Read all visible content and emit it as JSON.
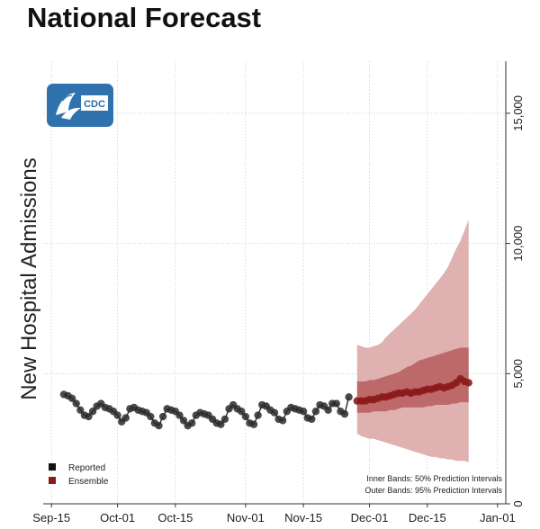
{
  "title": "National Forecast",
  "logo": {
    "text": "CDC",
    "color": "#2f72ad"
  },
  "chart_data": {
    "type": "line",
    "title": "National Forecast",
    "ylabel": "New Hospital Admissions",
    "xlabel": "",
    "x_tick_labels": [
      "Sep-15",
      "Oct-01",
      "Oct-15",
      "Nov-01",
      "Nov-15",
      "Dec-01",
      "Dec-15",
      "Jan-01"
    ],
    "y_ticks": [
      0,
      5000,
      10000,
      15000
    ],
    "y_tick_labels": [
      "0",
      "5,000",
      "10,000",
      "15,000"
    ],
    "ylim": [
      0,
      17000
    ],
    "x_range": [
      "2021-09-13",
      "2022-01-03"
    ],
    "y_axis_side": "right",
    "grid": true,
    "legend": {
      "placement": "bottom-left",
      "entries": [
        "Reported",
        "Ensemble"
      ]
    },
    "annotations": [
      "Inner Bands: 50% Prediction Intervals",
      "Outer Bands: 95% Prediction Intervals"
    ],
    "colors": {
      "reported": "#2b2b2b",
      "ensemble": "#8b1a1a",
      "band95": "#dba9a9",
      "band50": "#b85d5d"
    },
    "series": [
      {
        "name": "Reported",
        "x": [
          "2021-09-18",
          "2021-09-19",
          "2021-09-20",
          "2021-09-21",
          "2021-09-22",
          "2021-09-23",
          "2021-09-24",
          "2021-09-25",
          "2021-09-26",
          "2021-09-27",
          "2021-09-28",
          "2021-09-29",
          "2021-09-30",
          "2021-10-01",
          "2021-10-02",
          "2021-10-03",
          "2021-10-04",
          "2021-10-05",
          "2021-10-06",
          "2021-10-07",
          "2021-10-08",
          "2021-10-09",
          "2021-10-10",
          "2021-10-11",
          "2021-10-12",
          "2021-10-13",
          "2021-10-14",
          "2021-10-15",
          "2021-10-16",
          "2021-10-17",
          "2021-10-18",
          "2021-10-19",
          "2021-10-20",
          "2021-10-21",
          "2021-10-22",
          "2021-10-23",
          "2021-10-24",
          "2021-10-25",
          "2021-10-26",
          "2021-10-27",
          "2021-10-28",
          "2021-10-29",
          "2021-10-30",
          "2021-10-31",
          "2021-11-01",
          "2021-11-02",
          "2021-11-03",
          "2021-11-04",
          "2021-11-05",
          "2021-11-06",
          "2021-11-07",
          "2021-11-08",
          "2021-11-09",
          "2021-11-10",
          "2021-11-11",
          "2021-11-12",
          "2021-11-13",
          "2021-11-14",
          "2021-11-15",
          "2021-11-16",
          "2021-11-17",
          "2021-11-18",
          "2021-11-19",
          "2021-11-20",
          "2021-11-21",
          "2021-11-22",
          "2021-11-23",
          "2021-11-24",
          "2021-11-25",
          "2021-11-26"
        ],
        "values": [
          4200,
          4150,
          4050,
          3850,
          3600,
          3400,
          3350,
          3550,
          3750,
          3850,
          3700,
          3650,
          3550,
          3400,
          3150,
          3300,
          3650,
          3700,
          3600,
          3550,
          3500,
          3350,
          3100,
          3000,
          3350,
          3650,
          3600,
          3550,
          3400,
          3200,
          3000,
          3100,
          3400,
          3500,
          3450,
          3400,
          3250,
          3100,
          3050,
          3250,
          3650,
          3800,
          3650,
          3550,
          3350,
          3100,
          3050,
          3400,
          3800,
          3750,
          3600,
          3500,
          3250,
          3200,
          3550,
          3700,
          3650,
          3600,
          3550,
          3300,
          3250,
          3550,
          3800,
          3750,
          3600,
          3850,
          3850,
          3550,
          3450,
          4100
        ]
      },
      {
        "name": "Ensemble",
        "x": [
          "2021-11-28",
          "2021-11-29",
          "2021-11-30",
          "2021-12-01",
          "2021-12-02",
          "2021-12-03",
          "2021-12-04",
          "2021-12-05",
          "2021-12-06",
          "2021-12-07",
          "2021-12-08",
          "2021-12-09",
          "2021-12-10",
          "2021-12-11",
          "2021-12-12",
          "2021-12-13",
          "2021-12-14",
          "2021-12-15",
          "2021-12-16",
          "2021-12-17",
          "2021-12-18",
          "2021-12-19",
          "2021-12-20",
          "2021-12-21",
          "2021-12-22",
          "2021-12-23",
          "2021-12-24",
          "2021-12-25"
        ],
        "values": [
          3950,
          3950,
          3950,
          4000,
          4000,
          4050,
          4100,
          4100,
          4150,
          4200,
          4250,
          4250,
          4300,
          4250,
          4300,
          4300,
          4350,
          4400,
          4400,
          4450,
          4500,
          4450,
          4500,
          4550,
          4650,
          4800,
          4700,
          4650
        ],
        "band50_low": [
          3500,
          3500,
          3500,
          3500,
          3550,
          3550,
          3550,
          3550,
          3600,
          3600,
          3650,
          3700,
          3700,
          3700,
          3700,
          3700,
          3700,
          3750,
          3750,
          3800,
          3800,
          3800,
          3800,
          3850,
          3850,
          3900,
          3900,
          3900
        ],
        "band50_high": [
          4700,
          4700,
          4700,
          4750,
          4750,
          4800,
          4850,
          4900,
          4950,
          5000,
          5050,
          5150,
          5250,
          5300,
          5400,
          5500,
          5550,
          5600,
          5650,
          5700,
          5750,
          5800,
          5850,
          5900,
          5950,
          6000,
          6000,
          6000
        ],
        "band95_low": [
          2700,
          2600,
          2550,
          2500,
          2500,
          2450,
          2400,
          2350,
          2300,
          2250,
          2200,
          2150,
          2100,
          2050,
          2000,
          1950,
          1900,
          1850,
          1800,
          1800,
          1750,
          1750,
          1700,
          1700,
          1650,
          1650,
          1650,
          1600
        ],
        "band95_high": [
          6100,
          6050,
          6000,
          6000,
          6050,
          6100,
          6200,
          6400,
          6550,
          6700,
          6850,
          7000,
          7150,
          7300,
          7450,
          7650,
          7850,
          8050,
          8250,
          8450,
          8650,
          8850,
          9100,
          9450,
          9800,
          10100,
          10500,
          10900
        ]
      }
    ]
  }
}
